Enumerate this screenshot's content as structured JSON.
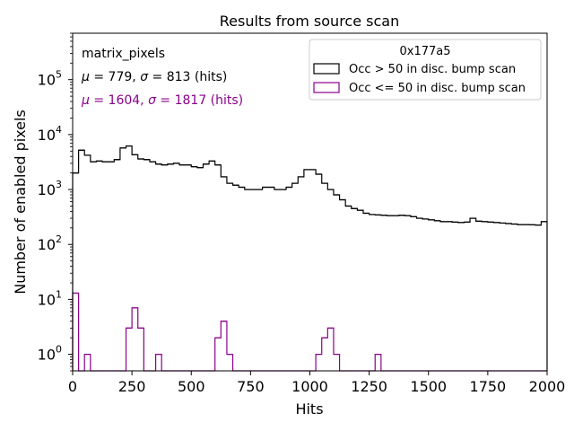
{
  "chart_data": {
    "type": "histogram",
    "title": "Results from source scan",
    "xlabel": "Hits",
    "ylabel": "Number of enabled pixels",
    "xlim": [
      0,
      2000
    ],
    "ylim": [
      0.5,
      700000
    ],
    "yscale": "log",
    "x_ticks": [
      0,
      250,
      500,
      750,
      1000,
      1250,
      1500,
      1750,
      2000
    ],
    "x_tick_labels": [
      "0",
      "250",
      "500",
      "750",
      "1000",
      "1250",
      "1500",
      "1750",
      "2000"
    ],
    "y_ticks": [
      1,
      10,
      100,
      1000,
      10000,
      100000
    ],
    "y_tick_labels": [
      {
        "base": "10",
        "exp": "0"
      },
      {
        "base": "10",
        "exp": "1"
      },
      {
        "base": "10",
        "exp": "2"
      },
      {
        "base": "10",
        "exp": "3"
      },
      {
        "base": "10",
        "exp": "4"
      },
      {
        "base": "10",
        "exp": "5"
      }
    ],
    "bin_width": 25,
    "annotations": {
      "name": "matrix_pixels",
      "stats1": {
        "mu_sym": "μ",
        "mu_eq": " = 779, ",
        "sigma_sym": "σ",
        "sigma_eq": " = 813 (hits)"
      },
      "stats2": {
        "mu_sym": "μ",
        "mu_eq": " = 1604, ",
        "sigma_sym": "σ",
        "sigma_eq": " = 1817 (hits)"
      }
    },
    "legend": {
      "title": "0x177a5",
      "location": "top-right",
      "entries": [
        "Occ > 50 in disc. bump scan",
        "Occ <= 50 in disc. bump scan"
      ]
    },
    "series": [
      {
        "name": "Occ > 50 in disc. bump scan",
        "color": "#000000",
        "values": [
          2000,
          5200,
          4200,
          3200,
          3300,
          3200,
          3200,
          3500,
          5700,
          6200,
          4300,
          3600,
          3500,
          3200,
          2900,
          2800,
          2900,
          3000,
          2800,
          2800,
          2600,
          2500,
          2900,
          3300,
          2800,
          1700,
          1300,
          1200,
          1100,
          1000,
          1000,
          1000,
          1100,
          1100,
          1000,
          1000,
          1100,
          1300,
          1700,
          2300,
          2300,
          1900,
          1300,
          1000,
          800,
          650,
          500,
          450,
          420,
          370,
          350,
          345,
          340,
          335,
          335,
          340,
          335,
          320,
          300,
          290,
          280,
          270,
          260,
          260,
          255,
          250,
          255,
          300,
          265,
          260,
          255,
          250,
          245,
          240,
          235,
          230,
          230,
          228,
          225,
          260
        ]
      },
      {
        "name": "Occ <= 50 in disc. bump scan",
        "color": "#8b008b",
        "values": [
          13,
          0,
          1,
          0,
          0,
          0,
          0,
          0,
          0,
          3,
          7,
          3,
          0,
          0,
          1,
          0,
          0,
          0,
          0,
          0,
          0,
          0,
          0,
          0,
          2,
          4,
          1,
          0,
          0,
          0,
          0,
          0,
          0,
          0,
          0,
          0,
          0,
          0,
          0,
          0,
          0,
          1,
          2,
          3,
          1,
          0,
          0,
          0,
          0,
          0,
          0,
          1,
          0,
          0,
          0,
          0,
          0,
          0,
          0,
          0,
          0,
          0,
          0,
          0,
          0,
          0,
          0,
          0,
          0,
          0,
          0,
          0,
          0,
          0,
          0,
          0,
          0,
          0,
          0,
          0
        ]
      }
    ]
  }
}
